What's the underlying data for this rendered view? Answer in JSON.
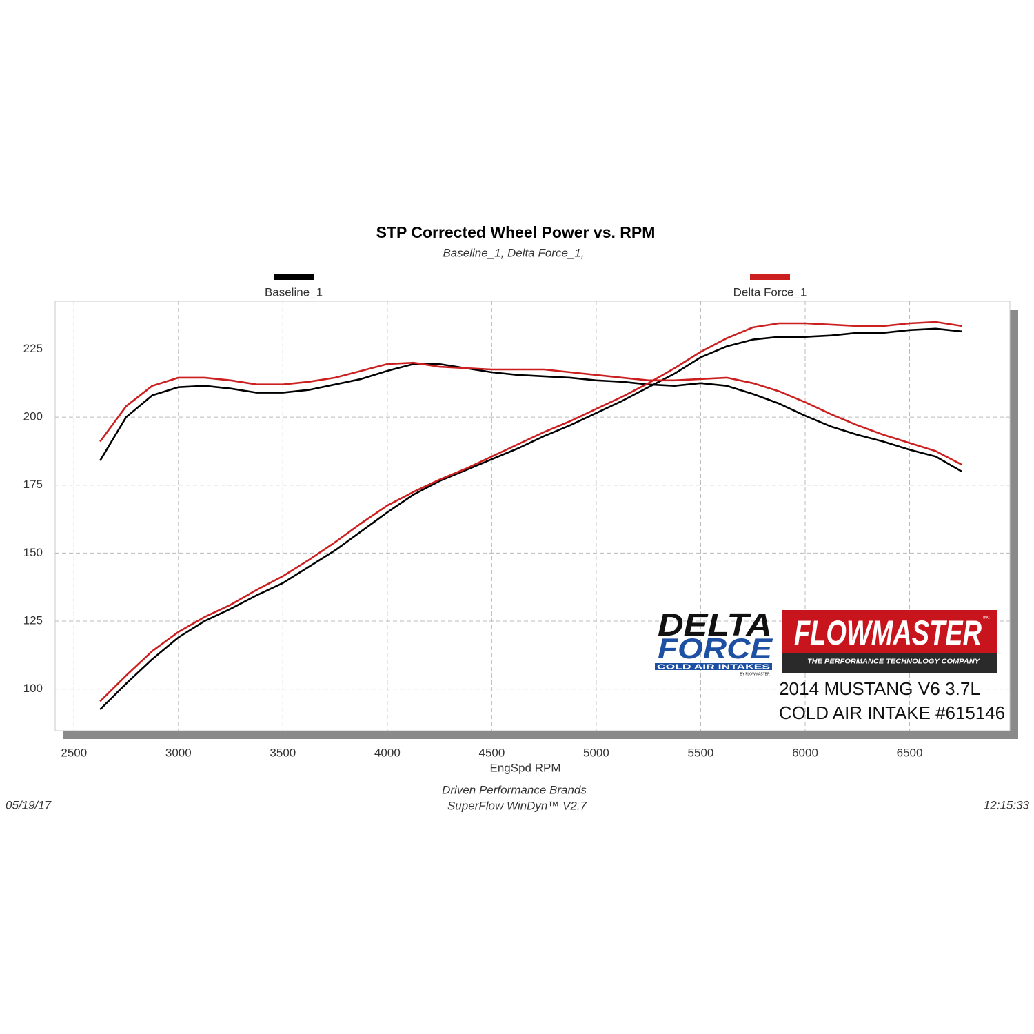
{
  "chart_data": {
    "type": "line",
    "title": "STP Corrected Wheel Power vs. RPM",
    "subtitle": "Baseline_1, Delta Force_1,",
    "x_label": "EngSpd  RPM",
    "x": [
      2625,
      2750,
      2875,
      3000,
      3125,
      3250,
      3375,
      3500,
      3625,
      3750,
      3875,
      4000,
      4125,
      4250,
      4375,
      4500,
      4625,
      4750,
      4875,
      5000,
      5125,
      5250,
      5375,
      5500,
      5625,
      5750,
      5875,
      6000,
      6125,
      6250,
      6375,
      6500,
      6625,
      6750
    ],
    "series": [
      {
        "name": "Baseline_1",
        "color": "#000000",
        "lines": [
          [
            184,
            200,
            208,
            211,
            211.5,
            210.5,
            209,
            209,
            210,
            212,
            214,
            217,
            219.5,
            219.5,
            218,
            216.5,
            215.5,
            215,
            214.5,
            213.5,
            213,
            212,
            211.5,
            212.5,
            211.5,
            208.5,
            205,
            200.5,
            196.5,
            193.5,
            191,
            188,
            185.5,
            180
          ],
          [
            92.5,
            102,
            111,
            119,
            125,
            129.5,
            134.5,
            139,
            145,
            151,
            158,
            165,
            171.5,
            176.5,
            180.5,
            184.5,
            188.5,
            193,
            197,
            201.5,
            206,
            211,
            216,
            222,
            226,
            228.5,
            229.5,
            229.5,
            230,
            231,
            231,
            232,
            232.5,
            231.5
          ]
        ]
      },
      {
        "name": "Delta Force_1",
        "color": "#cc1f1f",
        "lines": [
          [
            191,
            204,
            211.5,
            214.5,
            214.5,
            213.5,
            212,
            212,
            213,
            214.5,
            217,
            219.5,
            220,
            218.5,
            218,
            217.5,
            217.5,
            217.5,
            216.5,
            215.5,
            214.5,
            213.5,
            213.5,
            214,
            214.5,
            212.5,
            209.5,
            205.5,
            201,
            197,
            193.5,
            190.5,
            187.5,
            182.5
          ],
          [
            95.5,
            105,
            114,
            121,
            126.5,
            131,
            136.5,
            141.5,
            147.5,
            154,
            161,
            167.5,
            172.5,
            177,
            181,
            185.5,
            190,
            194.5,
            198.5,
            203,
            207.5,
            212.5,
            218,
            224,
            229,
            233,
            234.5,
            234.5,
            234,
            233.5,
            233.5,
            234.5,
            235,
            233.5
          ]
        ]
      }
    ],
    "xlim": [
      2410,
      6980
    ],
    "ylim": [
      84.7,
      242.6
    ],
    "xticks": [
      2500,
      3000,
      3500,
      4000,
      4500,
      5000,
      5500,
      6000,
      6500
    ],
    "yticks": [
      100,
      125,
      150,
      175,
      200,
      225
    ],
    "grid": true,
    "footer": {
      "center": [
        "Driven Performance Brands",
        "SuperFlow WinDyn™  V2.7"
      ],
      "date": "05/19/17",
      "time": "12:15:33"
    },
    "logos": {
      "delta": "DELTA",
      "force": "FORCE",
      "tagline": "COLD AIR INTAKES",
      "by": "BY FLOWMASTER",
      "flowmaster": "FLOWMASTER",
      "inc": "INC.",
      "flowmaster_tagline": "THE PERFORMANCE TECHNOLOGY COMPANY"
    },
    "annotations": [
      "2014 MUSTANG V6 3.7L",
      "COLD AIR INTAKE #615146"
    ]
  }
}
